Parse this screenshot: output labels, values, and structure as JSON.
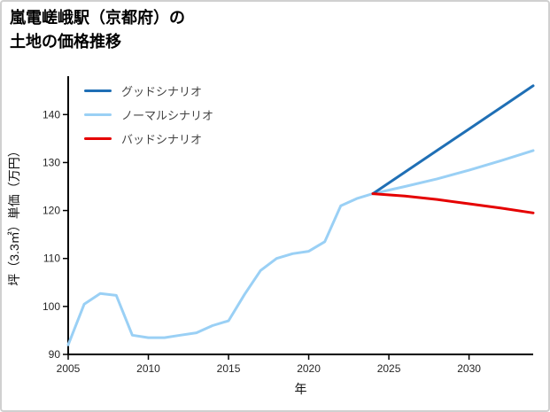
{
  "page": {
    "title_line1": "嵐電嵯峨駅（京都府）の",
    "title_line2": "土地の価格推移"
  },
  "chart_data": {
    "type": "line",
    "title": "嵐電嵯峨駅（京都府）の土地の価格推移",
    "xlabel": "年",
    "ylabel": "坪（3.3㎡）単価（万円）",
    "xlim": [
      2005,
      2034
    ],
    "ylim": [
      90,
      148
    ],
    "xticks": [
      2005,
      2010,
      2015,
      2020,
      2025,
      2030
    ],
    "yticks": [
      90,
      100,
      110,
      120,
      130,
      140
    ],
    "grid": false,
    "legend_position": "upper-left",
    "series": [
      {
        "key": "good",
        "name": "グッドシナリオ",
        "color": "#1f6fb5",
        "x": [
          2024,
          2026,
          2028,
          2030,
          2032,
          2034
        ],
        "y": [
          123.5,
          128.0,
          132.5,
          137.0,
          141.5,
          146.0
        ]
      },
      {
        "key": "normal",
        "name": "ノーマルシナリオ",
        "color": "#9ad0f5",
        "x": [
          2005,
          2006,
          2007,
          2008,
          2009,
          2010,
          2011,
          2012,
          2013,
          2014,
          2015,
          2016,
          2017,
          2018,
          2019,
          2020,
          2021,
          2022,
          2023,
          2024,
          2026,
          2028,
          2030,
          2032,
          2034
        ],
        "y": [
          92.0,
          100.5,
          102.7,
          102.3,
          94.0,
          93.5,
          93.5,
          94.0,
          94.5,
          96.0,
          97.0,
          102.5,
          107.5,
          110.0,
          111.0,
          111.5,
          113.5,
          121.0,
          122.5,
          123.5,
          125.0,
          126.6,
          128.4,
          130.4,
          132.5
        ]
      },
      {
        "key": "bad",
        "name": "バッドシナリオ",
        "color": "#e50000",
        "x": [
          2024,
          2026,
          2028,
          2030,
          2032,
          2034
        ],
        "y": [
          123.5,
          123.0,
          122.3,
          121.4,
          120.5,
          119.5
        ]
      }
    ]
  }
}
